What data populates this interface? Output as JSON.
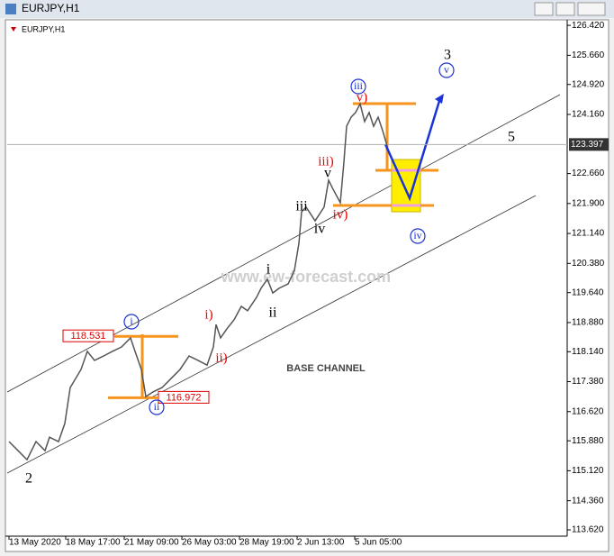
{
  "window_title": "EURJPY,H1",
  "chart_data": {
    "type": "line",
    "title": "EURJPY,H1",
    "x": [
      2,
      12,
      22,
      32,
      42,
      47,
      57,
      64,
      70,
      82,
      89,
      97,
      107,
      117,
      127,
      137,
      142,
      149,
      154,
      162,
      172,
      182,
      192,
      202,
      212,
      222,
      229,
      232,
      237,
      244,
      252,
      260,
      267,
      277,
      282,
      289,
      295,
      302,
      312,
      319,
      324,
      327,
      332,
      342,
      352,
      357,
      362,
      370,
      374,
      377,
      382,
      387,
      392,
      397,
      402,
      407,
      412,
      417,
      422
    ],
    "series": [
      {
        "name": "EURJPY",
        "color": "#555555",
        "values": [
          115.86,
          115.63,
          115.4,
          115.86,
          115.63,
          115.97,
          115.86,
          116.32,
          117.23,
          117.69,
          118.15,
          117.92,
          118.03,
          118.15,
          118.26,
          118.49,
          118.15,
          117.69,
          117.0,
          117.12,
          117.23,
          117.46,
          117.69,
          118.03,
          117.92,
          117.8,
          118.26,
          118.83,
          118.49,
          118.72,
          118.95,
          119.29,
          119.18,
          119.52,
          119.75,
          119.98,
          119.63,
          119.75,
          119.86,
          120.2,
          120.89,
          121.69,
          121.81,
          121.46,
          121.81,
          122.49,
          122.26,
          121.92,
          122.95,
          123.86,
          124.09,
          124.21,
          124.43,
          123.98,
          124.21,
          123.86,
          124.09,
          123.75,
          123.36
        ]
      }
    ],
    "xlim": [
      0,
      622
    ],
    "ylim": [
      113.46,
      126.56
    ],
    "xticks": [
      {
        "value": 2,
        "label": "13 May 2020"
      },
      {
        "value": 65,
        "label": "18 May 17:00"
      },
      {
        "value": 130,
        "label": "21 May 09:00"
      },
      {
        "value": 194,
        "label": "26 May 03:00"
      },
      {
        "value": 258,
        "label": "28 May 19:00"
      },
      {
        "value": 322,
        "label": "2 Jun 13:00"
      },
      {
        "value": 386,
        "label": "5 Jun 05:00"
      }
    ],
    "yticks": [
      {
        "value": 126.42,
        "label": "126.420"
      },
      {
        "value": 125.66,
        "label": "125.660"
      },
      {
        "value": 124.92,
        "label": "124.920"
      },
      {
        "value": 124.16,
        "label": "124.160"
      },
      {
        "value": 122.66,
        "label": "122.660"
      },
      {
        "value": 121.9,
        "label": "121.900"
      },
      {
        "value": 121.14,
        "label": "121.140"
      },
      {
        "value": 120.38,
        "label": "120.380"
      },
      {
        "value": 119.64,
        "label": "119.640"
      },
      {
        "value": 118.88,
        "label": "118.880"
      },
      {
        "value": 118.14,
        "label": "118.140"
      },
      {
        "value": 117.38,
        "label": "117.380"
      },
      {
        "value": 116.62,
        "label": "116.620"
      },
      {
        "value": 115.88,
        "label": "115.880"
      },
      {
        "value": 115.12,
        "label": "115.120"
      },
      {
        "value": 114.36,
        "label": "114.360"
      },
      {
        "value": 113.62,
        "label": "113.620"
      }
    ],
    "current_price": 123.397,
    "levels": [
      118.531,
      116.972
    ],
    "watermark": "www.ew-forecast.com",
    "annotations": [
      "3",
      "v",
      "5",
      "iii",
      "v)",
      "iii)",
      "v",
      "iv)",
      "iv",
      "iii",
      "i",
      "ii",
      "i)",
      "ii)",
      "i",
      "ii",
      "2",
      "iv",
      "BASE CHANNEL"
    ]
  }
}
